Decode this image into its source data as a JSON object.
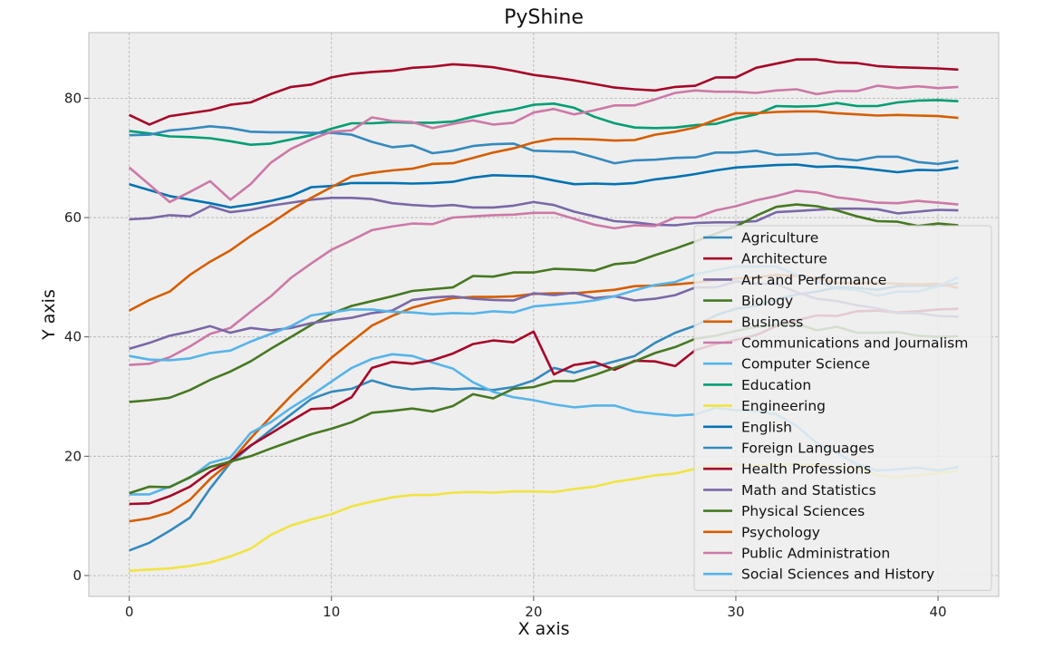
{
  "chart_data": {
    "type": "line",
    "title": "PyShine",
    "xlabel": "X axis",
    "ylabel": "Y axis",
    "xlim": [
      -2,
      43
    ],
    "ylim": [
      -3.5,
      91
    ],
    "xticks": [
      0,
      10,
      20,
      30,
      40
    ],
    "yticks": [
      0,
      20,
      40,
      60,
      80
    ],
    "grid": true,
    "legend_position": "lower-right",
    "x": [
      0,
      1,
      2,
      3,
      4,
      5,
      6,
      7,
      8,
      9,
      10,
      11,
      12,
      13,
      14,
      15,
      16,
      17,
      18,
      19,
      20,
      21,
      22,
      23,
      24,
      25,
      26,
      27,
      28,
      29,
      30,
      31,
      32,
      33,
      34,
      35,
      36,
      37,
      38,
      39,
      40,
      41
    ],
    "series": [
      {
        "name": "Agriculture",
        "color": "#348ABD",
        "values": [
          4.2,
          5.5,
          7.5,
          9.7,
          14.6,
          18.9,
          21.7,
          24.4,
          27.0,
          29.6,
          30.8,
          31.3,
          32.7,
          31.7,
          31.2,
          31.4,
          31.2,
          31.4,
          31.1,
          31.6,
          32.7,
          34.8,
          34.0,
          35.0,
          35.9,
          36.8,
          39.0,
          40.7,
          41.9,
          43.6,
          44.7,
          45.2,
          46.3,
          47.1,
          47.6,
          48.3,
          48.2,
          47.9,
          48.5,
          48.6,
          48.5,
          49.0
        ]
      },
      {
        "name": "Architecture",
        "color": "#A60628",
        "values": [
          77.2,
          75.6,
          77.0,
          77.5,
          78.0,
          78.9,
          79.3,
          80.7,
          81.9,
          82.3,
          83.5,
          84.1,
          84.4,
          84.6,
          85.1,
          85.3,
          85.7,
          85.5,
          85.2,
          84.6,
          83.9,
          83.5,
          83.0,
          82.4,
          81.8,
          81.5,
          81.3,
          81.9,
          82.1,
          83.5,
          83.5,
          85.1,
          85.8,
          86.5,
          86.5,
          86.0,
          85.9,
          85.4,
          85.2,
          85.1,
          85.0,
          84.8
        ]
      },
      {
        "name": "Art and Performance",
        "color": "#7A68A6",
        "values": [
          59.7,
          59.9,
          60.4,
          60.2,
          61.9,
          60.9,
          61.3,
          62.0,
          62.5,
          63.0,
          63.3,
          63.3,
          63.1,
          62.4,
          62.1,
          61.9,
          62.1,
          61.7,
          61.7,
          62.0,
          62.6,
          62.1,
          61.0,
          60.2,
          59.4,
          59.2,
          58.8,
          58.7,
          59.1,
          59.2,
          59.2,
          59.4,
          60.9,
          61.1,
          61.3,
          61.5,
          61.5,
          61.4,
          60.7,
          61.0,
          61.3,
          61.2
        ]
      },
      {
        "name": "Biology",
        "color": "#467821",
        "values": [
          29.1,
          29.4,
          29.8,
          31.1,
          32.8,
          34.2,
          35.9,
          38.0,
          40.0,
          42.0,
          43.9,
          45.2,
          46.0,
          46.8,
          47.7,
          48.0,
          48.3,
          50.2,
          50.1,
          50.8,
          50.8,
          51.4,
          51.3,
          51.1,
          52.2,
          52.5,
          53.7,
          54.8,
          56.0,
          57.3,
          58.5,
          60.3,
          61.8,
          62.2,
          61.9,
          61.2,
          60.2,
          59.4,
          59.3,
          58.6,
          59.0,
          58.7
        ]
      },
      {
        "name": "Business",
        "color": "#D55E00",
        "values": [
          9.1,
          9.6,
          10.6,
          12.7,
          16.2,
          19.0,
          23.0,
          26.6,
          30.1,
          33.3,
          36.5,
          39.2,
          41.9,
          43.5,
          44.9,
          45.8,
          46.5,
          46.7,
          46.7,
          46.8,
          47.2,
          47.3,
          47.3,
          47.6,
          47.9,
          48.5,
          48.6,
          48.8,
          49.1,
          49.5,
          49.8,
          50.0,
          50.4,
          50.2,
          49.8,
          49.1,
          49.0,
          49.1,
          48.9,
          48.8,
          48.9,
          48.2
        ]
      },
      {
        "name": "Communications and Journalism",
        "color": "#CC79A7",
        "values": [
          35.3,
          35.5,
          36.6,
          38.4,
          40.5,
          41.5,
          44.2,
          46.8,
          49.9,
          52.3,
          54.6,
          56.2,
          57.9,
          58.5,
          59.0,
          58.9,
          60.0,
          60.2,
          60.4,
          60.5,
          60.8,
          60.8,
          59.8,
          58.8,
          58.2,
          58.7,
          58.6,
          60.0,
          60.0,
          61.2,
          61.9,
          62.9,
          63.6,
          64.5,
          64.2,
          63.4,
          63.0,
          62.5,
          62.4,
          62.8,
          62.5,
          62.2
        ]
      },
      {
        "name": "Computer Science",
        "color": "#56B4E9",
        "values": [
          13.6,
          13.6,
          14.9,
          16.4,
          18.9,
          19.8,
          23.9,
          25.7,
          28.1,
          30.2,
          32.5,
          34.8,
          36.3,
          37.1,
          36.8,
          35.7,
          34.7,
          32.4,
          30.8,
          29.9,
          29.4,
          28.7,
          28.2,
          28.5,
          28.5,
          27.5,
          27.1,
          26.8,
          27.0,
          28.1,
          27.7,
          27.6,
          27.0,
          25.1,
          22.2,
          20.6,
          18.6,
          17.6,
          17.8,
          18.1,
          17.6,
          18.2
        ]
      },
      {
        "name": "Education",
        "color": "#009E73",
        "values": [
          74.5,
          74.1,
          73.6,
          73.5,
          73.3,
          72.8,
          72.2,
          72.4,
          73.1,
          73.8,
          74.9,
          75.8,
          75.8,
          76.0,
          75.9,
          75.9,
          76.1,
          76.9,
          77.6,
          78.1,
          78.9,
          79.1,
          78.4,
          76.9,
          75.8,
          75.1,
          75.0,
          75.1,
          75.5,
          75.7,
          76.6,
          77.3,
          78.7,
          78.6,
          78.7,
          79.2,
          78.7,
          78.7,
          79.3,
          79.6,
          79.7,
          79.5
        ]
      },
      {
        "name": "Engineering",
        "color": "#F0E442",
        "values": [
          0.8,
          1.0,
          1.2,
          1.6,
          2.2,
          3.2,
          4.5,
          6.8,
          8.4,
          9.4,
          10.3,
          11.6,
          12.4,
          13.1,
          13.5,
          13.5,
          13.9,
          14.0,
          13.9,
          14.1,
          14.1,
          14.0,
          14.5,
          14.9,
          15.7,
          16.2,
          16.8,
          17.1,
          17.9,
          18.5,
          18.6,
          18.4,
          18.6,
          18.6,
          18.5,
          18.2,
          17.9,
          16.8,
          16.5,
          16.8,
          17.2,
          17.5
        ]
      },
      {
        "name": "English",
        "color": "#0072B2",
        "values": [
          65.6,
          64.6,
          63.6,
          63.0,
          62.4,
          61.7,
          62.2,
          62.8,
          63.6,
          65.1,
          65.3,
          65.8,
          65.8,
          65.8,
          65.7,
          65.8,
          66.0,
          66.7,
          67.1,
          67.0,
          66.9,
          66.2,
          65.6,
          65.7,
          65.6,
          65.8,
          66.4,
          66.8,
          67.3,
          67.9,
          68.4,
          68.6,
          68.8,
          68.9,
          68.5,
          68.6,
          68.4,
          68.0,
          67.6,
          68.0,
          67.9,
          68.4
        ]
      },
      {
        "name": "Foreign Languages",
        "color": "#348ABD",
        "values": [
          73.8,
          73.9,
          74.6,
          74.9,
          75.3,
          75.0,
          74.4,
          74.3,
          74.3,
          74.2,
          74.2,
          73.9,
          72.7,
          71.8,
          72.1,
          70.8,
          71.2,
          72.0,
          72.3,
          72.4,
          71.2,
          71.1,
          71.0,
          70.1,
          69.1,
          69.6,
          69.7,
          70.0,
          70.1,
          70.9,
          70.9,
          71.2,
          70.5,
          70.6,
          70.8,
          69.9,
          69.6,
          70.2,
          70.2,
          69.3,
          69.0,
          69.5
        ]
      },
      {
        "name": "Health Professions",
        "color": "#A60628",
        "values": [
          12.0,
          12.1,
          13.3,
          14.9,
          17.4,
          19.2,
          21.8,
          23.8,
          25.9,
          27.9,
          28.1,
          29.9,
          34.8,
          35.8,
          35.5,
          36.1,
          37.2,
          38.8,
          39.4,
          39.1,
          40.9,
          33.7,
          35.3,
          35.8,
          34.5,
          36.0,
          35.9,
          35.1,
          37.8,
          38.8,
          39.5,
          40.3,
          41.8,
          42.8,
          43.6,
          43.5,
          44.3,
          44.4,
          44.1,
          44.3,
          44.6,
          44.7
        ]
      },
      {
        "name": "Math and Statistics",
        "color": "#7A68A6",
        "values": [
          38.0,
          39.0,
          40.2,
          40.9,
          41.8,
          40.7,
          41.5,
          41.1,
          41.5,
          42.3,
          42.8,
          43.2,
          44.0,
          44.4,
          46.2,
          46.6,
          46.8,
          46.4,
          46.2,
          46.1,
          47.3,
          47.0,
          47.4,
          46.5,
          46.8,
          46.1,
          46.4,
          47.0,
          48.3,
          48.3,
          49.3,
          48.9,
          48.9,
          47.5,
          46.4,
          46.0,
          45.3,
          44.8,
          44.0,
          44.0,
          43.5,
          43.4
        ]
      },
      {
        "name": "Physical Sciences",
        "color": "#467821",
        "values": [
          13.8,
          14.9,
          14.8,
          16.5,
          18.2,
          19.1,
          20.0,
          21.3,
          22.5,
          23.7,
          24.6,
          25.7,
          27.3,
          27.6,
          28.0,
          27.5,
          28.4,
          30.4,
          29.7,
          31.3,
          31.6,
          32.6,
          32.6,
          33.6,
          34.8,
          35.9,
          37.3,
          38.3,
          39.7,
          40.2,
          41.0,
          41.7,
          42.0,
          42.2,
          41.1,
          41.7,
          40.7,
          40.7,
          40.8,
          40.2,
          40.0,
          40.1
        ]
      },
      {
        "name": "Psychology",
        "color": "#D55E00",
        "values": [
          44.4,
          46.2,
          47.6,
          50.4,
          52.6,
          54.5,
          56.9,
          59.0,
          61.3,
          63.3,
          65.1,
          66.9,
          67.5,
          67.9,
          68.2,
          69.0,
          69.1,
          70.0,
          70.9,
          71.6,
          72.6,
          73.2,
          73.2,
          73.1,
          72.9,
          73.0,
          73.9,
          74.4,
          75.1,
          76.4,
          77.5,
          77.5,
          77.7,
          77.8,
          77.8,
          77.5,
          77.3,
          77.1,
          77.2,
          77.1,
          77.0,
          76.7
        ]
      },
      {
        "name": "Public Administration",
        "color": "#CC79A7",
        "values": [
          68.4,
          65.5,
          62.6,
          64.3,
          66.1,
          63.0,
          65.6,
          69.2,
          71.5,
          73.1,
          74.4,
          74.6,
          76.8,
          76.2,
          76.0,
          75.0,
          75.7,
          76.3,
          75.6,
          75.9,
          77.6,
          78.2,
          77.3,
          78.0,
          78.8,
          78.8,
          79.8,
          80.9,
          81.3,
          81.1,
          81.1,
          80.9,
          81.3,
          81.5,
          80.7,
          81.2,
          81.2,
          82.1,
          81.7,
          82.0,
          81.7,
          81.9
        ]
      },
      {
        "name": "Social Sciences and History",
        "color": "#56B4E9",
        "values": [
          36.8,
          36.2,
          36.1,
          36.4,
          37.3,
          37.7,
          39.2,
          40.5,
          41.8,
          43.6,
          44.1,
          44.6,
          44.6,
          44.2,
          44.1,
          43.8,
          44.0,
          43.9,
          44.3,
          44.1,
          45.1,
          45.4,
          45.7,
          46.1,
          46.8,
          47.8,
          48.7,
          49.2,
          50.5,
          51.2,
          51.8,
          51.8,
          51.8,
          50.4,
          49.3,
          48.1,
          47.9,
          46.9,
          47.6,
          47.6,
          48.5,
          50.0
        ]
      }
    ]
  }
}
